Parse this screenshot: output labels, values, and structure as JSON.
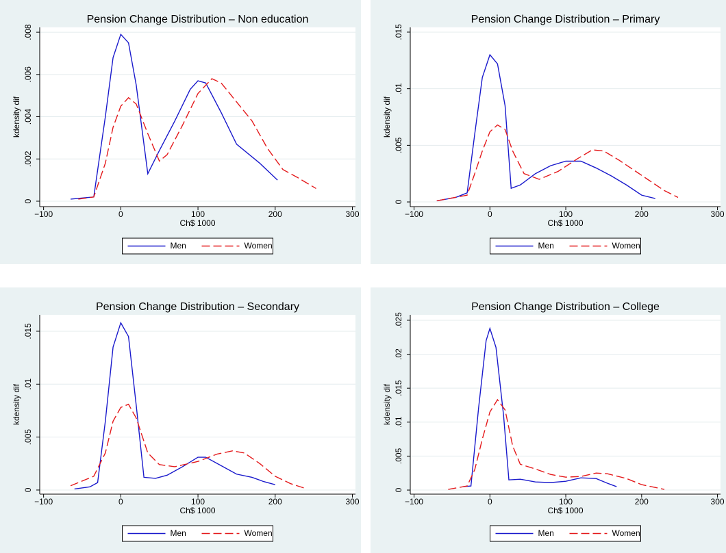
{
  "chart_data": [
    {
      "type": "line",
      "title": "Pension Change Distribution – Non education",
      "xlabel": "Ch$ 1000",
      "ylabel": "kdensity dif",
      "xlim": [
        -105,
        304
      ],
      "ylim": [
        -0.00026,
        0.00823
      ],
      "xticks": [
        {
          "value": -100,
          "label": "−100"
        },
        0,
        100,
        200,
        300
      ],
      "yticks": [
        0,
        {
          "value": 0.002,
          "label": ".002"
        },
        {
          "value": 0.004,
          "label": ".004"
        },
        {
          "value": 0.006,
          "label": ".006"
        },
        {
          "value": 0.008,
          "label": ".008"
        }
      ],
      "grid": true,
      "legend": "bottom",
      "series": [
        {
          "name": "Men",
          "color": "#1a1acc",
          "dashed": false,
          "x": [
            -65,
            -35,
            -20,
            -10,
            0,
            10,
            20,
            35,
            50,
            70,
            90,
            100,
            110,
            130,
            150,
            180,
            203
          ],
          "values": [
            0.0001,
            0.0002,
            0.004,
            0.0068,
            0.0079,
            0.0075,
            0.0055,
            0.0013,
            0.0024,
            0.0038,
            0.0053,
            0.0057,
            0.0056,
            0.0042,
            0.0027,
            0.0018,
            0.001
          ]
        },
        {
          "name": "Women",
          "color": "#e41a1c",
          "dashed": true,
          "x": [
            -55,
            -35,
            -20,
            -10,
            0,
            10,
            20,
            35,
            50,
            60,
            80,
            100,
            118,
            130,
            150,
            170,
            190,
            210,
            230,
            253
          ],
          "values": [
            0.0001,
            0.0002,
            0.0018,
            0.0035,
            0.0045,
            0.0049,
            0.0046,
            0.0032,
            0.0019,
            0.0022,
            0.0036,
            0.0051,
            0.0058,
            0.0056,
            0.0047,
            0.0038,
            0.0025,
            0.0015,
            0.0011,
            0.0006
          ]
        }
      ]
    },
    {
      "type": "line",
      "title": "Pension Change Distribution – Primary",
      "xlabel": "Ch$ 1000",
      "ylabel": "kdensity dif",
      "xlim": [
        -105,
        304
      ],
      "ylim": [
        -0.00042,
        0.01542
      ],
      "xticks": [
        {
          "value": -100,
          "label": "−100"
        },
        0,
        100,
        200,
        300
      ],
      "yticks": [
        0,
        {
          "value": 0.005,
          "label": ".005"
        },
        {
          "value": 0.01,
          "label": ".01"
        },
        {
          "value": 0.015,
          "label": ".015"
        }
      ],
      "grid": true,
      "legend": "bottom",
      "series": [
        {
          "name": "Men",
          "color": "#1a1acc",
          "dashed": false,
          "x": [
            -70,
            -45,
            -30,
            -20,
            -10,
            0,
            10,
            20,
            28,
            40,
            60,
            80,
            100,
            120,
            140,
            160,
            180,
            200,
            218
          ],
          "values": [
            0.0001,
            0.0004,
            0.0008,
            0.006,
            0.011,
            0.013,
            0.0122,
            0.0085,
            0.0012,
            0.0015,
            0.0025,
            0.0032,
            0.0036,
            0.0036,
            0.003,
            0.0023,
            0.0015,
            0.0006,
            0.0003
          ]
        },
        {
          "name": "Women",
          "color": "#e41a1c",
          "dashed": true,
          "x": [
            -70,
            -30,
            -20,
            -10,
            0,
            10,
            20,
            30,
            45,
            65,
            90,
            115,
            135,
            150,
            170,
            190,
            210,
            230,
            248
          ],
          "values": [
            0.0001,
            0.0006,
            0.0025,
            0.0045,
            0.0062,
            0.0068,
            0.0064,
            0.0045,
            0.0025,
            0.002,
            0.0027,
            0.0038,
            0.0046,
            0.0045,
            0.0037,
            0.0028,
            0.0019,
            0.001,
            0.0004
          ]
        }
      ]
    },
    {
      "type": "line",
      "title": "Pension Change Distribution – Secondary",
      "xlabel": "Ch$ 1000",
      "ylabel": "kdensity dif",
      "xlim": [
        -105,
        304
      ],
      "ylim": [
        -0.00039,
        0.01655
      ],
      "xticks": [
        {
          "value": -100,
          "label": "−100"
        },
        0,
        100,
        200,
        300
      ],
      "yticks": [
        0,
        {
          "value": 0.005,
          "label": ".005"
        },
        {
          "value": 0.01,
          "label": ".01"
        },
        {
          "value": 0.015,
          "label": ".015"
        }
      ],
      "grid": true,
      "legend": "bottom",
      "series": [
        {
          "name": "Men",
          "color": "#1a1acc",
          "dashed": false,
          "x": [
            -60,
            -40,
            -30,
            -20,
            -10,
            0,
            10,
            20,
            30,
            45,
            60,
            80,
            100,
            110,
            130,
            150,
            170,
            185,
            200
          ],
          "values": [
            0.0001,
            0.0003,
            0.0007,
            0.0065,
            0.0135,
            0.0158,
            0.0145,
            0.008,
            0.0012,
            0.0011,
            0.0014,
            0.0022,
            0.0031,
            0.0031,
            0.0023,
            0.0015,
            0.0012,
            0.0008,
            0.0005
          ]
        },
        {
          "name": "Women",
          "color": "#e41a1c",
          "dashed": true,
          "x": [
            -65,
            -45,
            -35,
            -20,
            -10,
            0,
            10,
            20,
            35,
            50,
            70,
            100,
            125,
            145,
            160,
            180,
            200,
            220,
            237
          ],
          "values": [
            0.0004,
            0.001,
            0.0013,
            0.0035,
            0.0065,
            0.0078,
            0.0081,
            0.0068,
            0.0035,
            0.0024,
            0.0022,
            0.0027,
            0.0034,
            0.0037,
            0.0035,
            0.0025,
            0.0013,
            0.0006,
            0.0002
          ]
        }
      ]
    },
    {
      "type": "line",
      "title": "Pension Change Distribution – College",
      "xlabel": "Ch$ 1000",
      "ylabel": "kdensity dif",
      "xlim": [
        -105,
        304
      ],
      "ylim": [
        -0.0006,
        0.0258
      ],
      "xticks": [
        {
          "value": -100,
          "label": "−100"
        },
        0,
        100,
        200,
        300
      ],
      "yticks": [
        0,
        {
          "value": 0.005,
          "label": ".005"
        },
        {
          "value": 0.01,
          "label": ".01"
        },
        {
          "value": 0.015,
          "label": ".015"
        },
        {
          "value": 0.02,
          "label": ".02"
        },
        {
          "value": 0.025,
          "label": ".025"
        }
      ],
      "grid": true,
      "legend": "bottom",
      "series": [
        {
          "name": "Men",
          "color": "#1a1acc",
          "dashed": false,
          "x": [
            -35,
            -25,
            -15,
            -5,
            0,
            8,
            18,
            25,
            40,
            60,
            80,
            100,
            120,
            140,
            155,
            167
          ],
          "values": [
            0.0005,
            0.0006,
            0.012,
            0.022,
            0.0238,
            0.021,
            0.011,
            0.0015,
            0.0016,
            0.0012,
            0.0011,
            0.0013,
            0.0018,
            0.0017,
            0.001,
            0.0005
          ]
        },
        {
          "name": "Women",
          "color": "#e41a1c",
          "dashed": true,
          "x": [
            -55,
            -30,
            -20,
            -10,
            0,
            10,
            20,
            30,
            40,
            60,
            80,
            100,
            120,
            140,
            155,
            180,
            200,
            230
          ],
          "values": [
            0.0001,
            0.0006,
            0.003,
            0.0075,
            0.0115,
            0.0133,
            0.0118,
            0.0065,
            0.0038,
            0.0031,
            0.0023,
            0.0019,
            0.002,
            0.0025,
            0.0024,
            0.0017,
            0.0008,
            0.0001
          ]
        }
      ]
    }
  ]
}
